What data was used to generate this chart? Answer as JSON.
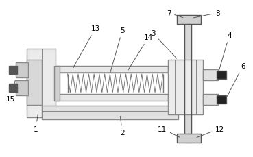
{
  "bg_color": "#ffffff",
  "line_color": "#888888",
  "dark_color": "#555555",
  "black_color": "#000000",
  "fig_width": 3.69,
  "fig_height": 2.3,
  "dpi": 100,
  "spring_coils": 18,
  "lw_main": 1.0,
  "lw_thin": 0.7,
  "label_fs": 7.5
}
